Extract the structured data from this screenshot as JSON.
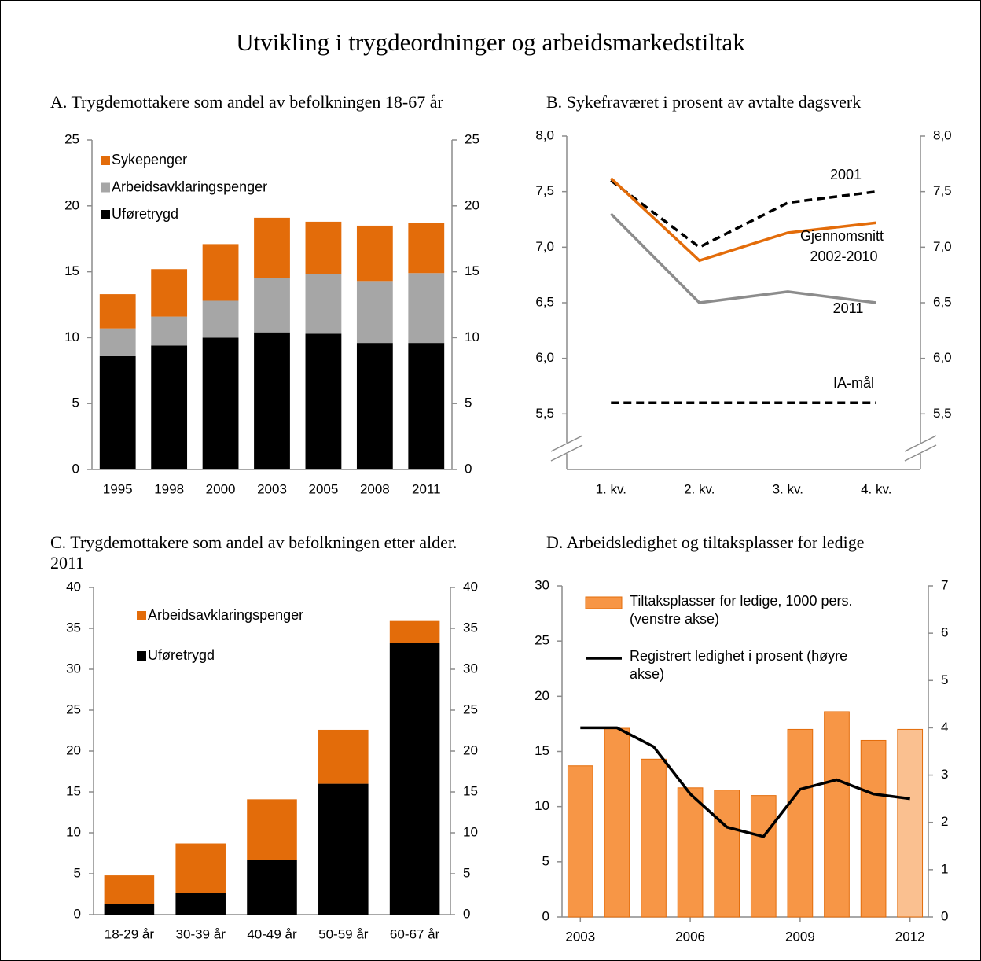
{
  "title": "Utvikling i trygdeordninger og arbeidsmarkedstiltak",
  "chart_data": [
    {
      "type": "stacked_bar",
      "title": "A. Trygdemottakere som andel av befolkningen 18-67 år",
      "categories": [
        "1995",
        "1998",
        "2000",
        "2003",
        "2005",
        "2008",
        "2011"
      ],
      "series": [
        {
          "name": "Uføretrygd",
          "color": "#000000",
          "values": [
            8.6,
            9.4,
            10.0,
            10.4,
            10.3,
            9.6,
            9.6
          ]
        },
        {
          "name": "Arbeidsavklaringspenger",
          "color": "#a6a6a6",
          "values": [
            2.1,
            2.2,
            2.8,
            4.1,
            4.5,
            4.7,
            5.3
          ]
        },
        {
          "name": "Sykepenger",
          "color": "#e36c0a",
          "values": [
            2.6,
            3.6,
            4.3,
            4.6,
            4.0,
            4.2,
            3.8
          ]
        }
      ],
      "ylim": [
        0,
        25
      ],
      "yticks": [
        0,
        5,
        10,
        15,
        20,
        25
      ],
      "legend": "upper left"
    },
    {
      "type": "line",
      "title": "B. Sykefraværet i prosent av avtalte dagsverk",
      "categories": [
        "1. kv.",
        "2. kv.",
        "3. kv.",
        "4. kv."
      ],
      "series": [
        {
          "name": "2001",
          "color": "#000000",
          "line_style": "dashed",
          "values": [
            7.6,
            7.0,
            7.4,
            7.5
          ]
        },
        {
          "name": "Gjennomsnitt 2002-2010",
          "color": "#e36c0a",
          "line_style": "solid",
          "values": [
            7.62,
            6.88,
            7.13,
            7.22
          ]
        },
        {
          "name": "2011",
          "color": "#8c8c8c",
          "line_style": "solid",
          "values": [
            7.3,
            6.5,
            6.6,
            6.5
          ]
        },
        {
          "name": "IA-mål",
          "color": "#000000",
          "line_style": "dashed",
          "values": [
            5.6,
            5.6,
            5.6,
            5.6
          ]
        }
      ],
      "ylim": [
        5.0,
        8.0
      ],
      "axis_break": true,
      "yticks": [
        {
          "value": 5.5,
          "label": "5,5"
        },
        {
          "value": 6.0,
          "label": "6,0"
        },
        {
          "value": 6.5,
          "label": "6,5"
        },
        {
          "value": 7.0,
          "label": "7,0"
        },
        {
          "value": 7.5,
          "label": "7,5"
        },
        {
          "value": 8.0,
          "label": "8,0"
        }
      ]
    },
    {
      "type": "stacked_bar",
      "title": "C. Trygdemottakere som andel av befolkningen etter alder. 2011",
      "categories": [
        "18-29 år",
        "30-39 år",
        "40-49 år",
        "50-59 år",
        "60-67 år"
      ],
      "series": [
        {
          "name": "Uføretrygd",
          "color": "#000000",
          "values": [
            1.3,
            2.6,
            6.7,
            16.0,
            33.2
          ]
        },
        {
          "name": "Arbeidsavklaringspenger",
          "color": "#e36c0a",
          "values": [
            3.5,
            6.1,
            7.4,
            6.6,
            2.7
          ]
        }
      ],
      "ylim": [
        0,
        40
      ],
      "yticks": [
        0,
        5,
        10,
        15,
        20,
        25,
        30,
        35,
        40
      ],
      "legend": "upper left"
    },
    {
      "type": "bar_line",
      "title": "D. Arbeidsledighet og tiltaksplasser for ledige",
      "x": [
        2003,
        2004,
        2005,
        2006,
        2007,
        2008,
        2009,
        2010,
        2011,
        2012
      ],
      "xlim": [
        2002.5,
        2012.5
      ],
      "xticks": [
        2003,
        2006,
        2009,
        2012
      ],
      "series": [
        {
          "name": "Tiltaksplasser for ledige, 1000 pers. (venstre akse)",
          "type": "bar",
          "color": "#f79646",
          "edgecolor": "#e36c0a",
          "colors": [
            "#f79646",
            "#f79646",
            "#f79646",
            "#f79646",
            "#f79646",
            "#f79646",
            "#f79646",
            "#f79646",
            "#f79646",
            "#fac090"
          ],
          "values": [
            13.7,
            17.1,
            14.3,
            11.7,
            11.5,
            11.0,
            17.0,
            18.6,
            16.0,
            17.0
          ]
        },
        {
          "name": "Registrert ledighet i prosent (høyre akse)",
          "type": "line",
          "axis": "y2",
          "color": "#000000",
          "values": [
            4.0,
            4.0,
            3.6,
            2.6,
            1.9,
            1.7,
            2.7,
            2.9,
            2.6,
            2.5
          ]
        }
      ],
      "ylim": [
        0,
        30
      ],
      "yticks": [
        0,
        5,
        10,
        15,
        20,
        25,
        30
      ],
      "y2lim": [
        0,
        7
      ],
      "y2ticks": [
        0,
        1,
        2,
        3,
        4,
        5,
        6,
        7
      ],
      "legend": "upper left"
    }
  ]
}
